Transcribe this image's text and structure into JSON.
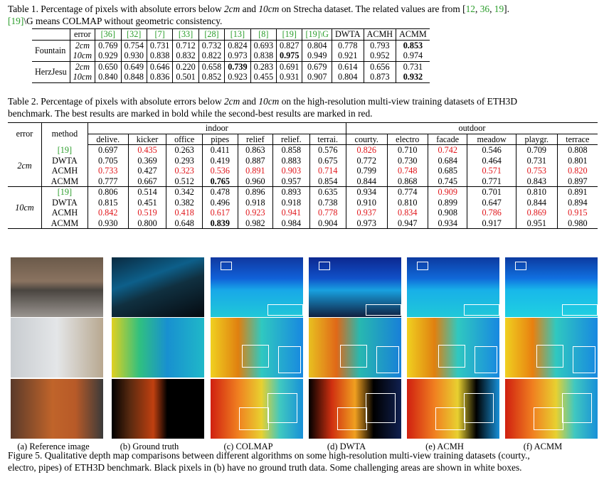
{
  "table1": {
    "caption_prefix": "Table 1.",
    "caption_text_a": " Percentage of pixels with absolute errors below ",
    "caption_2cm": "2cm",
    "caption_and": " and ",
    "caption_10cm": "10cm",
    "caption_text_b": " on Strecha dataset. The related values are from [",
    "ref12": "12",
    "ref36": "36",
    "ref19": "19",
    "caption_text_c": "].",
    "caption_line2_ref": "[19]",
    "caption_line2": "\\G means COLMAP without geometric consistency.",
    "headers": [
      "error",
      "[36]",
      "[32]",
      "[7]",
      "[33]",
      "[28]",
      "[13]",
      "[8]",
      "[19]",
      "[19]\\G",
      "DWTA",
      "ACMH",
      "ACMM"
    ],
    "rows": [
      {
        "dataset": "Fountain",
        "error": "2cm",
        "values": [
          "0.769",
          "0.754",
          "0.731",
          "0.712",
          "0.732",
          "0.824",
          "0.693",
          "0.827",
          "0.804",
          "0.778",
          "0.793",
          "0.853"
        ]
      },
      {
        "dataset": "",
        "error": "10cm",
        "values": [
          "0.929",
          "0.930",
          "0.838",
          "0.832",
          "0.822",
          "0.973",
          "0.838",
          "0.975",
          "0.949",
          "0.921",
          "0.952",
          "0.974"
        ]
      },
      {
        "dataset": "HerzJesu",
        "error": "2cm",
        "values": [
          "0.650",
          "0.649",
          "0.646",
          "0.220",
          "0.658",
          "0.739",
          "0.283",
          "0.691",
          "0.679",
          "0.614",
          "0.656",
          "0.731"
        ]
      },
      {
        "dataset": "",
        "error": "10cm",
        "values": [
          "0.840",
          "0.848",
          "0.836",
          "0.501",
          "0.852",
          "0.923",
          "0.455",
          "0.931",
          "0.907",
          "0.804",
          "0.873",
          "0.932"
        ]
      }
    ]
  },
  "table2": {
    "caption_prefix": "Table 2.",
    "caption_a": " Percentage of pixels with absolute errors below ",
    "caption_2cm": "2cm",
    "caption_and": " and ",
    "caption_10cm": "10cm",
    "caption_b": " on the high-resolution multi-view training datasets of ETH3D",
    "caption_line2": "benchmark. The best results are marked in bold while the second-best results are marked in red.",
    "group_indoor": "indoor",
    "group_outdoor": "outdoor",
    "col_error": "error",
    "col_method": "method",
    "columns": [
      "delive.",
      "kicker",
      "office",
      "pipes",
      "relief",
      "relief.",
      "terrai.",
      "courty.",
      "electro",
      "facade",
      "meadow",
      "playgr.",
      "terrace"
    ],
    "blocks": [
      {
        "error": "2cm",
        "rows": [
          {
            "method": "[19]",
            "values": [
              "0.697",
              "0.435",
              "0.263",
              "0.411",
              "0.863",
              "0.858",
              "0.576",
              "0.826",
              "0.710",
              "0.742",
              "0.546",
              "0.709",
              "0.808"
            ]
          },
          {
            "method": "DWTA",
            "values": [
              "0.705",
              "0.369",
              "0.293",
              "0.419",
              "0.887",
              "0.883",
              "0.675",
              "0.772",
              "0.730",
              "0.684",
              "0.464",
              "0.731",
              "0.801"
            ]
          },
          {
            "method": "ACMH",
            "values": [
              "0.733",
              "0.427",
              "0.323",
              "0.536",
              "0.891",
              "0.903",
              "0.714",
              "0.799",
              "0.748",
              "0.685",
              "0.571",
              "0.753",
              "0.820"
            ]
          },
          {
            "method": "ACMM",
            "values": [
              "0.777",
              "0.667",
              "0.512",
              "0.765",
              "0.960",
              "0.957",
              "0.854",
              "0.844",
              "0.868",
              "0.745",
              "0.771",
              "0.843",
              "0.897"
            ]
          }
        ]
      },
      {
        "error": "10cm",
        "rows": [
          {
            "method": "[19]",
            "values": [
              "0.806",
              "0.514",
              "0.342",
              "0.478",
              "0.896",
              "0.893",
              "0.635",
              "0.934",
              "0.774",
              "0.909",
              "0.701",
              "0.810",
              "0.891"
            ]
          },
          {
            "method": "DWTA",
            "values": [
              "0.815",
              "0.451",
              "0.382",
              "0.496",
              "0.918",
              "0.918",
              "0.738",
              "0.910",
              "0.810",
              "0.899",
              "0.647",
              "0.844",
              "0.894"
            ]
          },
          {
            "method": "ACMH",
            "values": [
              "0.842",
              "0.519",
              "0.418",
              "0.617",
              "0.923",
              "0.941",
              "0.778",
              "0.937",
              "0.834",
              "0.908",
              "0.786",
              "0.869",
              "0.915"
            ]
          },
          {
            "method": "ACMM",
            "values": [
              "0.930",
              "0.800",
              "0.648",
              "0.839",
              "0.982",
              "0.984",
              "0.904",
              "0.973",
              "0.947",
              "0.934",
              "0.917",
              "0.951",
              "0.980"
            ]
          }
        ]
      }
    ]
  },
  "figure5": {
    "sub_labels": [
      "(a) Reference image",
      "(b) Ground truth",
      "(c) COLMAP",
      "(d) DWTA",
      "(e) ACMH",
      "(f) ACMM"
    ],
    "caption_prefix": "Figure 5.",
    "caption_line1": " Qualitative depth map comparisons between different algorithms on some high-resolution multi-view training datasets (courty.,",
    "caption_line2": "electro, pipes) of ETH3D benchmark. Black pixels in (b) have no ground truth data. Some challenging areas are shown in white boxes."
  },
  "colors": {
    "red": "#e0161b",
    "green": "#2a9d2a"
  }
}
